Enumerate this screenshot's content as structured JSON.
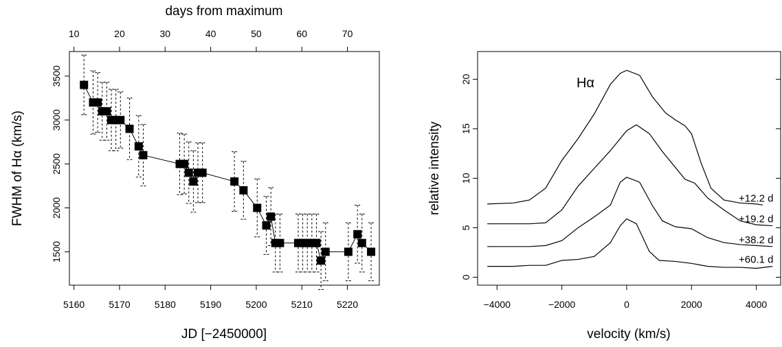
{
  "chart_data": [
    {
      "type": "scatter",
      "xlabel": "JD [−2450000]",
      "ylabel": "FWHM of Hα (km/s)",
      "top_axis_label": "days from maximum",
      "xlim": [
        5159,
        5227
      ],
      "ylim": [
        1120,
        3780
      ],
      "x_ticks": [
        5160,
        5170,
        5180,
        5190,
        5200,
        5210,
        5220
      ],
      "y_ticks": [
        1500,
        2000,
        2500,
        3000,
        3500
      ],
      "top_ticks": [
        10,
        20,
        30,
        40,
        50,
        60,
        70
      ],
      "top_axis_offset": 5150,
      "connected": true,
      "error_bar": "dashed",
      "points": [
        {
          "x": 5162.2,
          "y": 3400,
          "err": 340
        },
        {
          "x": 5164.2,
          "y": 3200,
          "err": 360
        },
        {
          "x": 5165.2,
          "y": 3200,
          "err": 340
        },
        {
          "x": 5166.2,
          "y": 3100,
          "err": 330
        },
        {
          "x": 5167.2,
          "y": 3100,
          "err": 330
        },
        {
          "x": 5168.2,
          "y": 3000,
          "err": 350
        },
        {
          "x": 5169.2,
          "y": 3000,
          "err": 350
        },
        {
          "x": 5170.2,
          "y": 3000,
          "err": 320
        },
        {
          "x": 5172.2,
          "y": 2900,
          "err": 350
        },
        {
          "x": 5174.2,
          "y": 2700,
          "err": 350
        },
        {
          "x": 5175.2,
          "y": 2600,
          "err": 350
        },
        {
          "x": 5183.2,
          "y": 2500,
          "err": 350
        },
        {
          "x": 5184.2,
          "y": 2500,
          "err": 340
        },
        {
          "x": 5185.2,
          "y": 2400,
          "err": 350
        },
        {
          "x": 5186.2,
          "y": 2300,
          "err": 350
        },
        {
          "x": 5187.2,
          "y": 2400,
          "err": 340
        },
        {
          "x": 5188.2,
          "y": 2400,
          "err": 340
        },
        {
          "x": 5195.2,
          "y": 2300,
          "err": 340
        },
        {
          "x": 5197.2,
          "y": 2200,
          "err": 330
        },
        {
          "x": 5200.2,
          "y": 2000,
          "err": 330
        },
        {
          "x": 5202.2,
          "y": 1800,
          "err": 330
        },
        {
          "x": 5203.2,
          "y": 1900,
          "err": 330
        },
        {
          "x": 5204.2,
          "y": 1600,
          "err": 330
        },
        {
          "x": 5205.2,
          "y": 1600,
          "err": 330
        },
        {
          "x": 5209.2,
          "y": 1600,
          "err": 330
        },
        {
          "x": 5210.2,
          "y": 1600,
          "err": 330
        },
        {
          "x": 5211.2,
          "y": 1600,
          "err": 330
        },
        {
          "x": 5212.2,
          "y": 1600,
          "err": 330
        },
        {
          "x": 5213.2,
          "y": 1600,
          "err": 330
        },
        {
          "x": 5214.2,
          "y": 1400,
          "err": 330
        },
        {
          "x": 5215.2,
          "y": 1500,
          "err": 330
        },
        {
          "x": 5220.2,
          "y": 1500,
          "err": 330
        },
        {
          "x": 5222.2,
          "y": 1700,
          "err": 330
        },
        {
          "x": 5223.2,
          "y": 1600,
          "err": 330
        },
        {
          "x": 5225.2,
          "y": 1500,
          "err": 330
        }
      ]
    },
    {
      "type": "line",
      "xlabel": "velocity (km/s)",
      "ylabel": "relative intensity",
      "annotation": "Hα",
      "xlim": [
        -4600,
        4750
      ],
      "ylim": [
        -0.8,
        22.8
      ],
      "x_ticks": [
        -4000,
        -2000,
        0,
        2000,
        4000
      ],
      "y_ticks": [
        0,
        5,
        10,
        15,
        20
      ],
      "series": [
        {
          "name": "+12.2 d",
          "x": [
            -4300,
            -3500,
            -3000,
            -2500,
            -2000,
            -1500,
            -1000,
            -500,
            -200,
            0,
            400,
            800,
            1200,
            1500,
            1800,
            2000,
            2300,
            2600,
            3000,
            3500,
            4000,
            4200
          ],
          "y": [
            7.4,
            7.5,
            7.8,
            9.0,
            11.8,
            14.0,
            16.5,
            19.5,
            20.6,
            20.9,
            20.4,
            18.2,
            16.6,
            15.9,
            15.3,
            14.5,
            11.5,
            9.0,
            7.8,
            7.5,
            7.4,
            7.3
          ]
        },
        {
          "name": "+19.2 d",
          "x": [
            -4300,
            -3500,
            -3000,
            -2500,
            -2000,
            -1500,
            -1000,
            -500,
            0,
            300,
            700,
            1100,
            1500,
            1800,
            2100,
            2500,
            3000,
            3500,
            4000,
            4500
          ],
          "y": [
            5.4,
            5.4,
            5.4,
            5.5,
            6.8,
            9.2,
            11.0,
            12.8,
            14.8,
            15.4,
            14.5,
            12.7,
            11.1,
            9.9,
            9.5,
            8.0,
            6.8,
            5.7,
            5.3,
            5.2
          ]
        },
        {
          "name": "+38.2 d",
          "x": [
            -4300,
            -3500,
            -3000,
            -2500,
            -2000,
            -1500,
            -1000,
            -500,
            -200,
            0,
            400,
            800,
            1100,
            1500,
            2000,
            2500,
            3000,
            3500,
            4000,
            4500
          ],
          "y": [
            3.1,
            3.1,
            3.1,
            3.2,
            3.7,
            5.0,
            6.1,
            7.3,
            9.6,
            10.1,
            9.6,
            7.2,
            5.7,
            5.1,
            4.9,
            4.0,
            3.5,
            3.3,
            3.2,
            3.1
          ]
        },
        {
          "name": "+60.1 d",
          "x": [
            -4300,
            -3500,
            -3000,
            -2500,
            -2000,
            -1500,
            -1000,
            -500,
            -200,
            0,
            300,
            700,
            1000,
            1500,
            2000,
            2500,
            3000,
            3500,
            4000,
            4500
          ],
          "y": [
            1.1,
            1.1,
            1.2,
            1.2,
            1.7,
            1.8,
            2.1,
            3.5,
            5.2,
            5.9,
            5.4,
            2.6,
            1.7,
            1.6,
            1.4,
            1.1,
            1.0,
            1.0,
            0.9,
            1.1
          ]
        }
      ]
    }
  ]
}
